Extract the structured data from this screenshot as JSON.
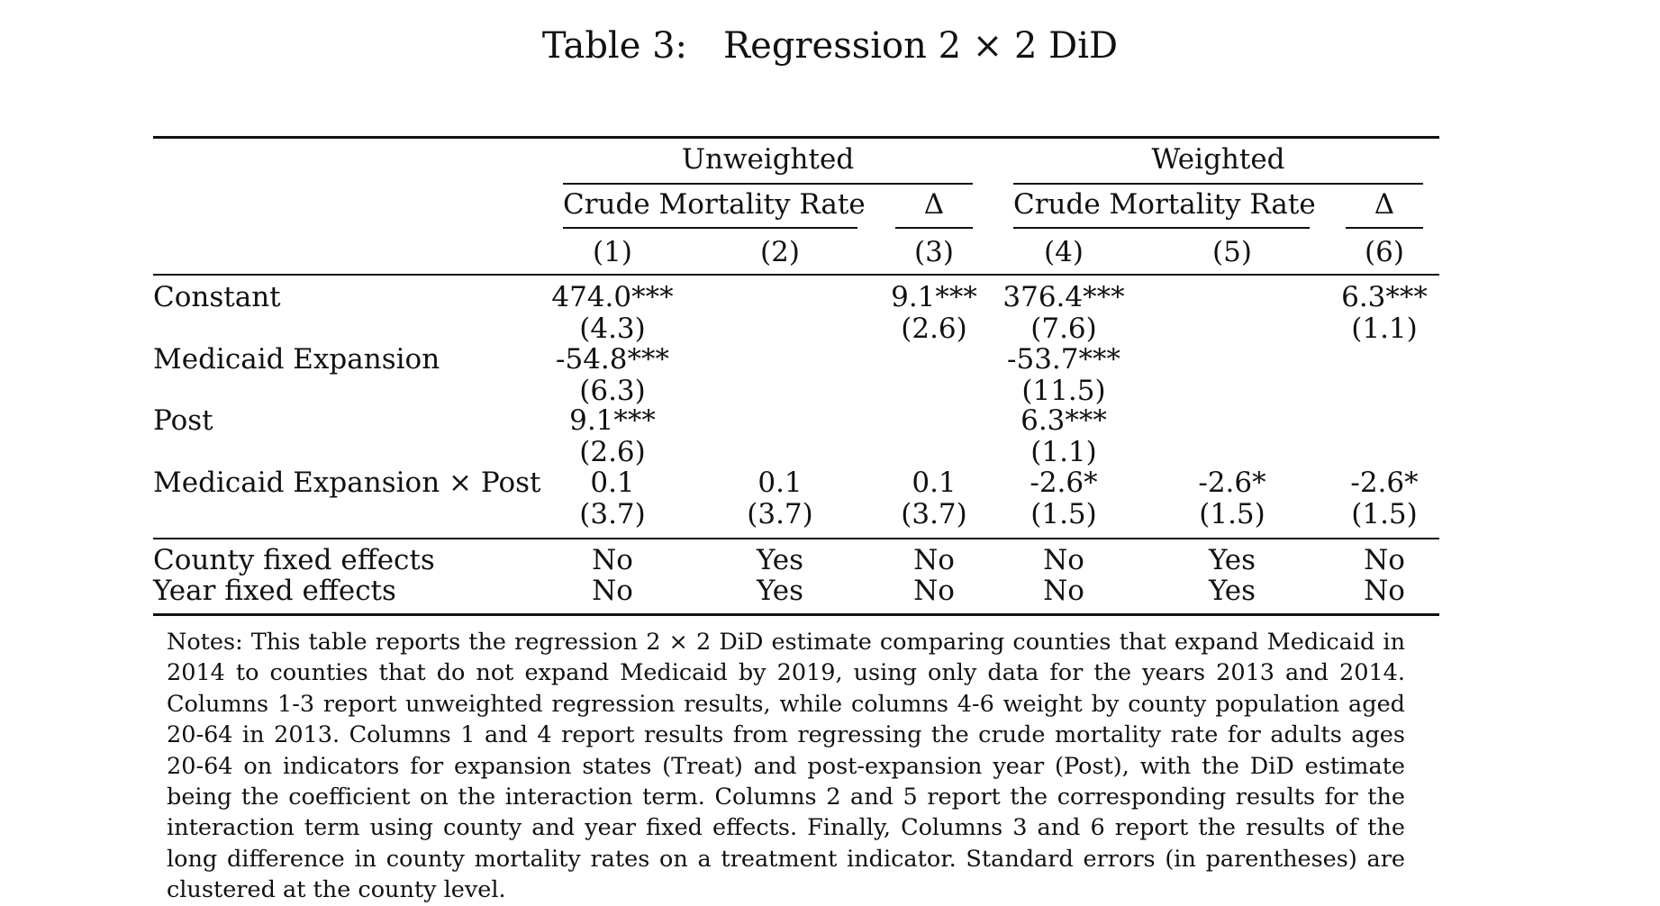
{
  "title": "Table 3: Regression 2 × 2 DiD",
  "header": {
    "groups": [
      "Unweighted",
      "Weighted"
    ],
    "subgroups": [
      "Crude Mortality Rate",
      "Δ",
      "Crude Mortality Rate",
      "Δ"
    ],
    "columns": [
      "(1)",
      "(2)",
      "(3)",
      "(4)",
      "(5)",
      "(6)"
    ]
  },
  "rows": [
    {
      "label": "Constant",
      "coef": [
        "474.0***",
        "",
        "9.1***",
        "376.4***",
        "",
        "6.3***"
      ],
      "se": [
        "(4.3)",
        "",
        "(2.6)",
        "(7.6)",
        "",
        "(1.1)"
      ]
    },
    {
      "label": "Medicaid Expansion",
      "coef": [
        "-54.8***",
        "",
        "",
        "-53.7***",
        "",
        ""
      ],
      "se": [
        "(6.3)",
        "",
        "",
        "(11.5)",
        "",
        ""
      ]
    },
    {
      "label": "Post",
      "coef": [
        "9.1***",
        "",
        "",
        "6.3***",
        "",
        ""
      ],
      "se": [
        "(2.6)",
        "",
        "",
        "(1.1)",
        "",
        ""
      ]
    },
    {
      "label": "Medicaid Expansion × Post",
      "coef": [
        "0.1",
        "0.1",
        "0.1",
        "-2.6*",
        "-2.6*",
        "-2.6*"
      ],
      "se": [
        "(3.7)",
        "(3.7)",
        "(3.7)",
        "(1.5)",
        "(1.5)",
        "(1.5)"
      ]
    }
  ],
  "fixed_effects": [
    {
      "label": "County fixed effects",
      "values": [
        "No",
        "Yes",
        "No",
        "No",
        "Yes",
        "No"
      ]
    },
    {
      "label": "Year fixed effects",
      "values": [
        "No",
        "Yes",
        "No",
        "No",
        "Yes",
        "No"
      ]
    }
  ],
  "notes": "Notes: This table reports the regression 2 × 2 DiD estimate comparing counties that expand Medicaid in 2014 to counties that do not expand Medicaid by 2019, using only data for the years 2013 and 2014. Columns 1-3 report unweighted regression results, while columns 4-6 weight by county population aged 20-64 in 2013. Columns 1 and 4 report results from regressing the crude mortality rate for adults ages 20-64 on indicators for expansion states (Treat) and post-expansion year (Post), with the DiD estimate being the coefficient on the interaction term. Columns 2 and 5 report the corresponding results for the interaction term using county and year fixed effects. Finally, Columns 3 and 6 report the results of the long difference in county mortality rates on a treatment indicator. Standard errors (in parentheses) are clustered at the county level."
}
